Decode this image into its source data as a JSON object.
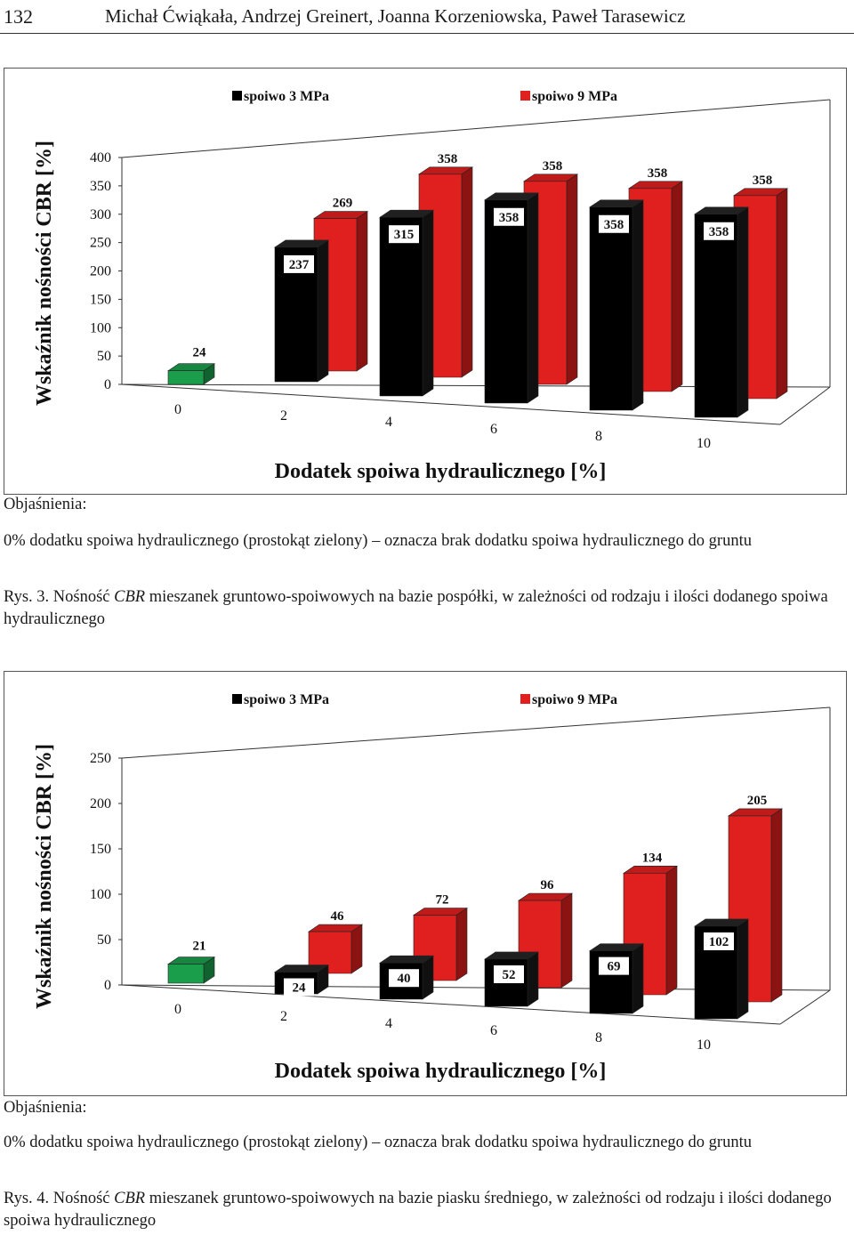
{
  "header": {
    "page_number": "132",
    "authors": "Michał Ćwiąkała, Andrzej Greinert, Joanna Korzeniowska, Paweł Tarasewicz"
  },
  "figures": [
    {
      "explanations_label": "Objaśnienia:",
      "note": "0% dodatku spoiwa hydraulicznego (prostokąt zielony) – oznacza brak dodatku spoiwa hydraulicznego do gruntu",
      "caption_prefix": "Rys. 3. Nośność ",
      "caption_italic": "CBR",
      "caption_suffix": " mieszanek gruntowo-spoiwowych na bazie pospółki, w zależności od rodzaju i ilości dodanego spoiwa hydraulicznego"
    },
    {
      "explanations_label": "Objaśnienia:",
      "note": "0% dodatku spoiwa hydraulicznego (prostokąt zielony) – oznacza brak dodatku spoiwa hydraulicznego do gruntu",
      "caption_prefix": "Rys. 4. Nośność ",
      "caption_italic": "CBR",
      "caption_suffix": " mieszanek gruntowo-spoiwowych na bazie piasku średniego, w zależności od rodzaju i ilości dodanego spoiwa hydraulicznego"
    }
  ],
  "chart_data": [
    {
      "type": "bar",
      "subtype": "3d-clustered",
      "xlabel": "Dodatek spoiwa hydraulicznego [%]",
      "ylabel": "Wskaźnik nośności CBR [%]",
      "categories": [
        "0",
        "2",
        "4",
        "6",
        "8",
        "10"
      ],
      "ylim": [
        0,
        400
      ],
      "yticks": [
        "0",
        "50",
        "100",
        "150",
        "200",
        "250",
        "300",
        "350",
        "400"
      ],
      "baseline": {
        "category": "0",
        "value": 24,
        "color": "#1a9e4b"
      },
      "series": [
        {
          "name": "spoiwo 3 MPa",
          "color": "#000000",
          "values": [
            null,
            237,
            315,
            358,
            358,
            358
          ]
        },
        {
          "name": "spoiwo 9 MPa",
          "color": "#e0201e",
          "values": [
            null,
            269,
            358,
            358,
            358,
            358
          ]
        }
      ],
      "legend_position": "top",
      "grid": false
    },
    {
      "type": "bar",
      "subtype": "3d-clustered",
      "xlabel": "Dodatek spoiwa hydraulicznego [%]",
      "ylabel": "Wskaźnik nośności CBR [%]",
      "categories": [
        "0",
        "2",
        "4",
        "6",
        "8",
        "10"
      ],
      "ylim": [
        0,
        250
      ],
      "yticks": [
        "0",
        "50",
        "100",
        "150",
        "200",
        "250"
      ],
      "baseline": {
        "category": "0",
        "value": 21,
        "color": "#1a9e4b"
      },
      "series": [
        {
          "name": "spoiwo 3 MPa",
          "color": "#000000",
          "values": [
            null,
            24,
            40,
            52,
            69,
            102
          ]
        },
        {
          "name": "spoiwo 9 MPa",
          "color": "#e0201e",
          "values": [
            null,
            46,
            72,
            96,
            134,
            205
          ]
        }
      ],
      "legend_position": "top",
      "grid": false
    }
  ]
}
